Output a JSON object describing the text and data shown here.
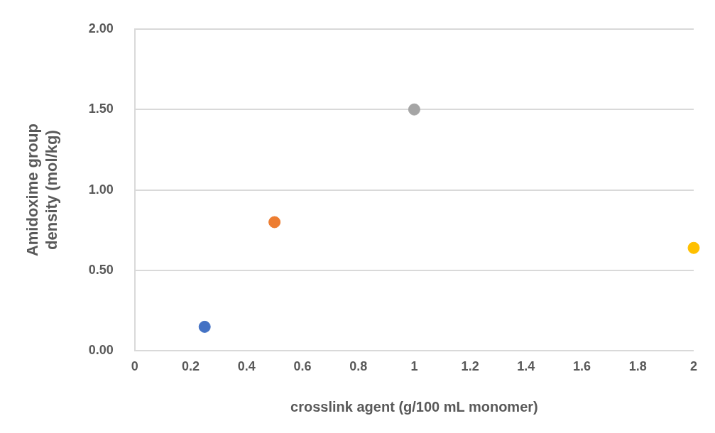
{
  "chart_data": {
    "type": "scatter",
    "xlabel": "crosslink agent (g/100 mL monomer)",
    "ylabel": "Amidoxime group density (mol/kg)",
    "x": [
      0.25,
      0.5,
      1,
      2
    ],
    "values": [
      0.15,
      0.8,
      1.5,
      0.64
    ],
    "colors": [
      "#4472c4",
      "#ed7d31",
      "#a5a5a5",
      "#ffc000"
    ],
    "xlim": [
      0,
      2
    ],
    "xticks": [
      0,
      0.2,
      0.4,
      0.6,
      0.8,
      1,
      1.2,
      1.4,
      1.6,
      1.8,
      2
    ],
    "ylim": [
      0,
      2
    ],
    "yticks": [
      {
        "value": 0,
        "label": "0.00"
      },
      {
        "value": 0.5,
        "label": "0.50"
      },
      {
        "value": 1,
        "label": "1.00"
      },
      {
        "value": 1.5,
        "label": "1.50"
      },
      {
        "value": 2,
        "label": "2.00"
      }
    ],
    "grid": "y",
    "legend": false,
    "marker": "circle"
  }
}
